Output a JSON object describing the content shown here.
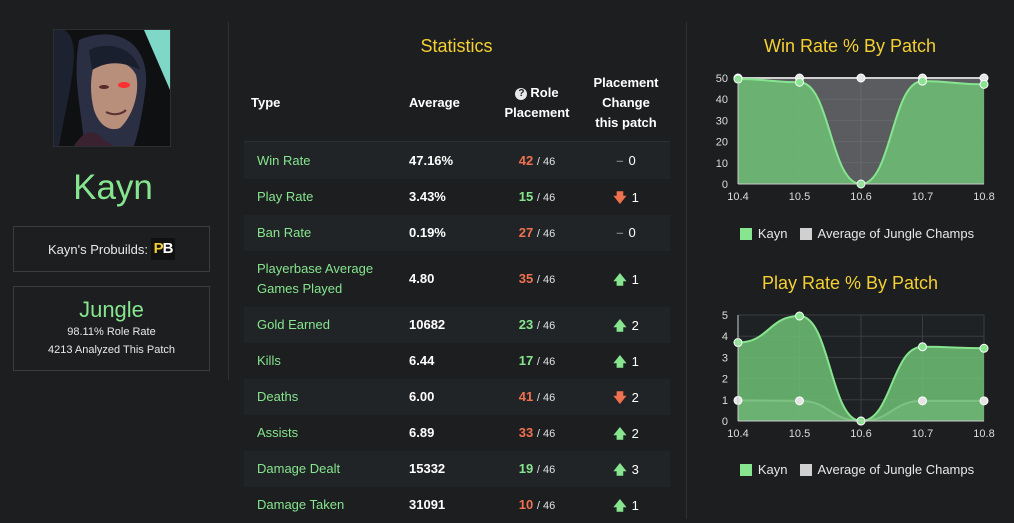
{
  "champion": {
    "name": "Kayn",
    "probuilds_label": "Kayn's Probuilds:",
    "probuilds_logo": [
      "P",
      "B"
    ]
  },
  "role": {
    "name": "Jungle",
    "role_rate": "98.11% Role Rate",
    "analyzed": "4213 Analyzed This Patch"
  },
  "stats": {
    "title": "Statistics",
    "headers": {
      "type": "Type",
      "average": "Average",
      "role_placement": [
        "Role",
        "Placement"
      ],
      "placement_change": [
        "Placement",
        "Change",
        "this patch"
      ]
    },
    "rows": [
      {
        "type": [
          "Win Rate"
        ],
        "average": "47.16%",
        "rank": "42",
        "total": "/ 46",
        "rank_color": "#f0714f",
        "arrow": "–",
        "arrow_color": "#777777",
        "change": "0"
      },
      {
        "type": [
          "Play Rate"
        ],
        "average": "3.43%",
        "rank": "15",
        "total": "/ 46",
        "rank_color": "#86e58e",
        "arrow": "🡇",
        "arrow_color": "#f0714f",
        "change": "1"
      },
      {
        "type": [
          "Ban Rate"
        ],
        "average": "0.19%",
        "rank": "27",
        "total": "/ 46",
        "rank_color": "#f0714f",
        "arrow": "–",
        "arrow_color": "#777777",
        "change": "0"
      },
      {
        "type": [
          "Playerbase Average",
          "Games Played"
        ],
        "average": "4.80",
        "rank": "35",
        "total": "/ 46",
        "rank_color": "#f0714f",
        "arrow": "🡅",
        "arrow_color": "#86e58e",
        "change": "1"
      },
      {
        "type": [
          "Gold Earned"
        ],
        "average": "10682",
        "rank": "23",
        "total": "/ 46",
        "rank_color": "#86e58e",
        "arrow": "🡅",
        "arrow_color": "#86e58e",
        "change": "2"
      },
      {
        "type": [
          "Kills"
        ],
        "average": "6.44",
        "rank": "17",
        "total": "/ 46",
        "rank_color": "#86e58e",
        "arrow": "🡅",
        "arrow_color": "#86e58e",
        "change": "1"
      },
      {
        "type": [
          "Deaths"
        ],
        "average": "6.00",
        "rank": "41",
        "total": "/ 46",
        "rank_color": "#f0714f",
        "arrow": "🡇",
        "arrow_color": "#f0714f",
        "change": "2"
      },
      {
        "type": [
          "Assists"
        ],
        "average": "6.89",
        "rank": "33",
        "total": "/ 46",
        "rank_color": "#f0714f",
        "arrow": "🡅",
        "arrow_color": "#86e58e",
        "change": "2"
      },
      {
        "type": [
          "Damage Dealt"
        ],
        "average": "15332",
        "rank": "19",
        "total": "/ 46",
        "rank_color": "#86e58e",
        "arrow": "🡅",
        "arrow_color": "#86e58e",
        "change": "3"
      },
      {
        "type": [
          "Damage Taken"
        ],
        "average": "31091",
        "rank": "10",
        "total": "/ 46",
        "rank_color": "#f0714f",
        "arrow": "🡅",
        "arrow_color": "#86e58e",
        "change": "1"
      }
    ]
  },
  "chart_data": [
    {
      "type": "area",
      "title": "Win Rate % By Patch",
      "categories": [
        "10.4",
        "10.5",
        "10.6",
        "10.7",
        "10.8"
      ],
      "ylim": [
        0,
        50
      ],
      "yticks": [
        0,
        10,
        20,
        30,
        40,
        50
      ],
      "series": [
        {
          "name": "Kayn",
          "values": [
            49.5,
            48,
            0,
            48.5,
            47
          ],
          "color": "#86e58e"
        },
        {
          "name": "Average of Jungle Champs",
          "values": [
            50,
            50,
            50,
            50,
            50
          ],
          "color": "#d0d0d0"
        }
      ],
      "legend": "bottom"
    },
    {
      "type": "area",
      "title": "Play Rate % By Patch",
      "categories": [
        "10.4",
        "10.5",
        "10.6",
        "10.7",
        "10.8"
      ],
      "ylim": [
        0,
        5
      ],
      "yticks": [
        0,
        1,
        2,
        3,
        4,
        5
      ],
      "series": [
        {
          "name": "Kayn",
          "values": [
            3.7,
            4.95,
            0,
            3.5,
            3.43
          ],
          "color": "#86e58e"
        },
        {
          "name": "Average of Jungle Champs",
          "values": [
            0.97,
            0.95,
            0,
            0.95,
            0.95
          ],
          "color": "#d0d0d0"
        }
      ],
      "legend": "bottom"
    }
  ]
}
